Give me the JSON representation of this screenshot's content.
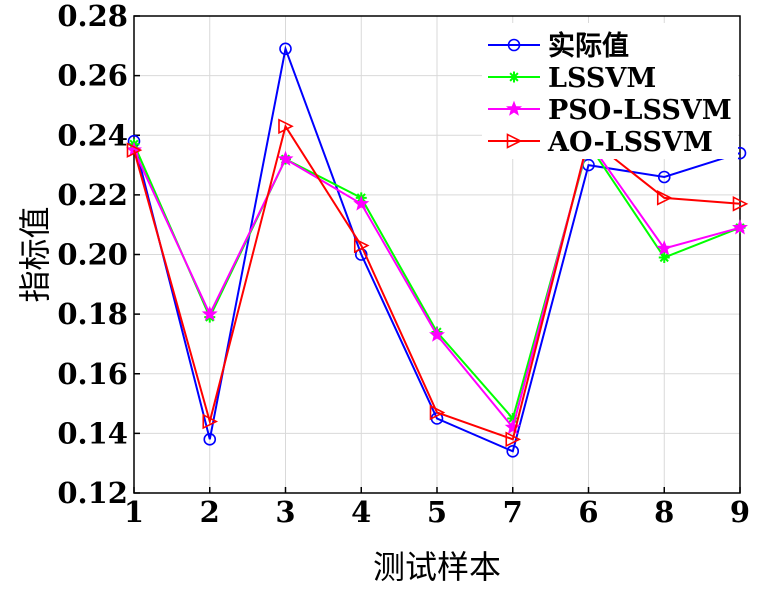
{
  "chart_data": {
    "type": "line",
    "title": "",
    "xlabel": "测试样本",
    "ylabel": "指标值",
    "categories": [
      "1",
      "2",
      "3",
      "4",
      "5",
      "7",
      "6",
      "8",
      "9"
    ],
    "ylim": [
      0.12,
      0.28
    ],
    "yticks": [
      "0.12",
      "0.14",
      "0.16",
      "0.18",
      "0.20",
      "0.22",
      "0.24",
      "0.26",
      "0.28"
    ],
    "grid": true,
    "legend_position": "top-right",
    "series": [
      {
        "name": "实际值",
        "color": "#0000ff",
        "marker": "circle",
        "values": [
          0.238,
          0.138,
          0.269,
          0.2,
          0.145,
          0.134,
          0.23,
          0.226,
          0.234
        ]
      },
      {
        "name": "LSSVM",
        "color": "#00ff00",
        "marker": "asterisk",
        "values": [
          0.237,
          0.179,
          0.232,
          0.219,
          0.174,
          0.145,
          0.237,
          0.199,
          0.209
        ]
      },
      {
        "name": "PSO-LSSVM",
        "color": "#ff00ff",
        "marker": "star",
        "values": [
          0.235,
          0.18,
          0.232,
          0.217,
          0.173,
          0.142,
          0.238,
          0.202,
          0.209
        ]
      },
      {
        "name": "AO-LSSVM",
        "color": "#ff0000",
        "marker": "triangle-right",
        "values": [
          0.235,
          0.144,
          0.243,
          0.203,
          0.147,
          0.138,
          0.239,
          0.219,
          0.217
        ]
      }
    ]
  }
}
